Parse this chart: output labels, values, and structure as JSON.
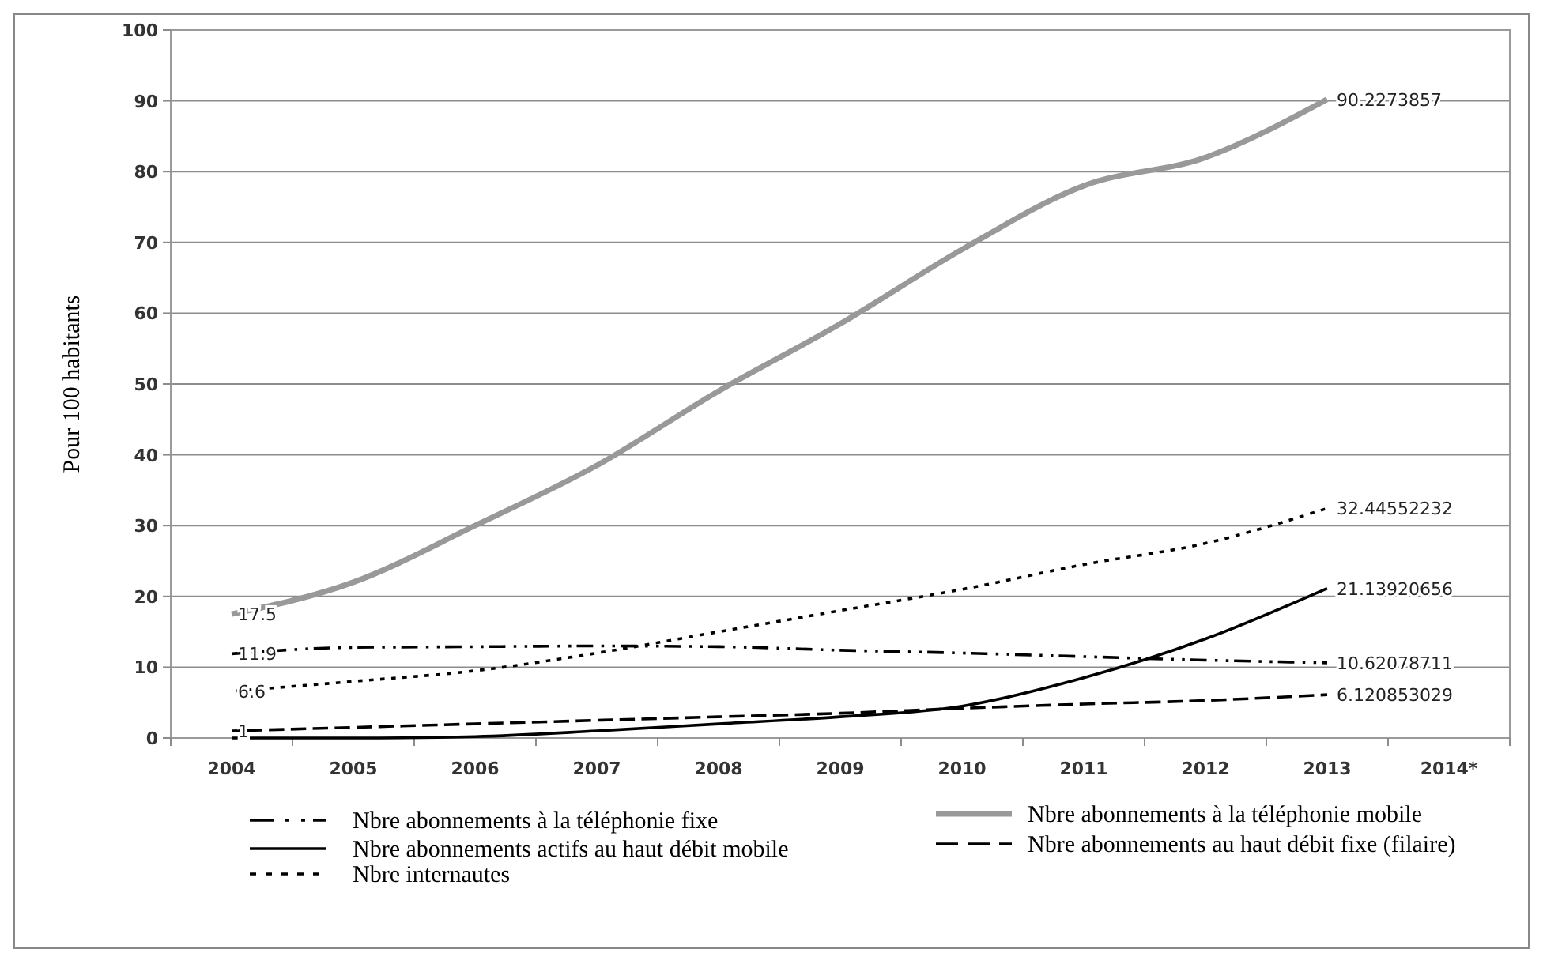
{
  "chart_data": {
    "type": "line",
    "ylabel": "Pour 100 habitants",
    "categories": [
      "2004",
      "2005",
      "2006",
      "2007",
      "2008",
      "2009",
      "2010",
      "2011",
      "2012",
      "2013",
      "2014*"
    ],
    "ylim": [
      0,
      100
    ],
    "yticks": [
      0,
      10,
      20,
      30,
      40,
      50,
      60,
      70,
      80,
      90,
      100
    ],
    "grid": "y",
    "legend": "bottom",
    "series": [
      {
        "name": "Nbre abonnements à la téléphonie fixe",
        "color": "#000000",
        "line_style": "dashdot",
        "values": [
          11.9,
          12.8,
          12.9,
          13,
          12.9,
          12.4,
          12,
          11.5,
          11,
          10.62078711,
          null
        ],
        "value_labels": [
          "11.9",
          null,
          null,
          null,
          null,
          null,
          null,
          null,
          null,
          "10.62078711",
          null
        ]
      },
      {
        "name": "Nbre abonnements à la téléphonie mobile",
        "color": "#999999",
        "line_style": "solid",
        "values": [
          17.5,
          22,
          30,
          38.5,
          49,
          58.5,
          69,
          78,
          82,
          90.2273857,
          null
        ],
        "value_labels": [
          "17.5",
          null,
          null,
          null,
          null,
          null,
          null,
          null,
          null,
          "90.2273857",
          null
        ]
      },
      {
        "name": "Nbre abonnements actifs au haut débit mobile",
        "color": "#000000",
        "line_style": "solid",
        "values": [
          0,
          0,
          0.2,
          1,
          2,
          3,
          4.5,
          8.5,
          14,
          21.13920656,
          null
        ],
        "value_labels": [
          null,
          null,
          null,
          null,
          null,
          null,
          null,
          null,
          null,
          "21.13920656",
          null
        ]
      },
      {
        "name": "Nbre abonnements au haut débit fixe (filaire)",
        "color": "#000000",
        "line_style": "dashed",
        "values": [
          1,
          1.5,
          2,
          2.5,
          3,
          3.5,
          4.2,
          4.8,
          5.3,
          6.120853029,
          null
        ],
        "value_labels": [
          "1",
          null,
          null,
          null,
          null,
          null,
          null,
          null,
          null,
          "6.120853029",
          null
        ]
      },
      {
        "name": "Nbre internautes",
        "color": "#000000",
        "line_style": "dotted",
        "values": [
          6.6,
          8,
          9.5,
          12,
          15,
          18,
          21,
          24.5,
          27.5,
          32.44552232,
          null
        ],
        "value_labels": [
          "6.6",
          null,
          null,
          null,
          null,
          null,
          null,
          null,
          null,
          "32.44552232",
          null
        ]
      }
    ]
  }
}
